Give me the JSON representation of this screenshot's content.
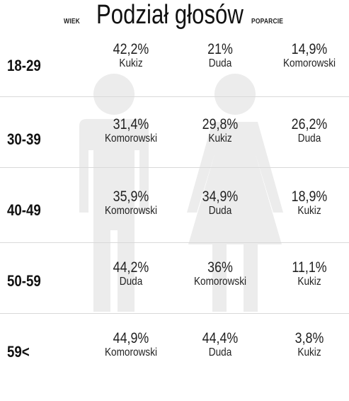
{
  "header": {
    "title": "Podział głosów",
    "left_label": "WIEK",
    "right_label": "POPARCIE"
  },
  "rows": [
    {
      "age": "18-29",
      "cells": [
        {
          "pct": "42,2%",
          "name": "Kukiz"
        },
        {
          "pct": "21%",
          "name": "Duda"
        },
        {
          "pct": "14,9%",
          "name": "Komorowski"
        }
      ]
    },
    {
      "age": "30-39",
      "cells": [
        {
          "pct": "31,4%",
          "name": "Komorowski"
        },
        {
          "pct": "29,8%",
          "name": "Kukiz"
        },
        {
          "pct": "26,2%",
          "name": "Duda"
        }
      ]
    },
    {
      "age": "40-49",
      "cells": [
        {
          "pct": "35,9%",
          "name": "Komorowski"
        },
        {
          "pct": "34,9%",
          "name": "Duda"
        },
        {
          "pct": "18,9%",
          "name": "Kukiz"
        }
      ]
    },
    {
      "age": "50-59",
      "cells": [
        {
          "pct": "44,2%",
          "name": "Duda"
        },
        {
          "pct": "36%",
          "name": "Komorowski"
        },
        {
          "pct": "11,1%",
          "name": "Kukiz"
        }
      ]
    },
    {
      "age": "59<",
      "cells": [
        {
          "pct": "44,9%",
          "name": "Komorowski"
        },
        {
          "pct": "44,4%",
          "name": "Duda"
        },
        {
          "pct": "3,8%",
          "name": "Kukiz"
        }
      ]
    }
  ],
  "colors": {
    "figure": "#ececec",
    "divider": "#d9d9d9",
    "text": "#222222"
  },
  "icons": [
    "man-silhouette-icon",
    "woman-silhouette-icon"
  ]
}
